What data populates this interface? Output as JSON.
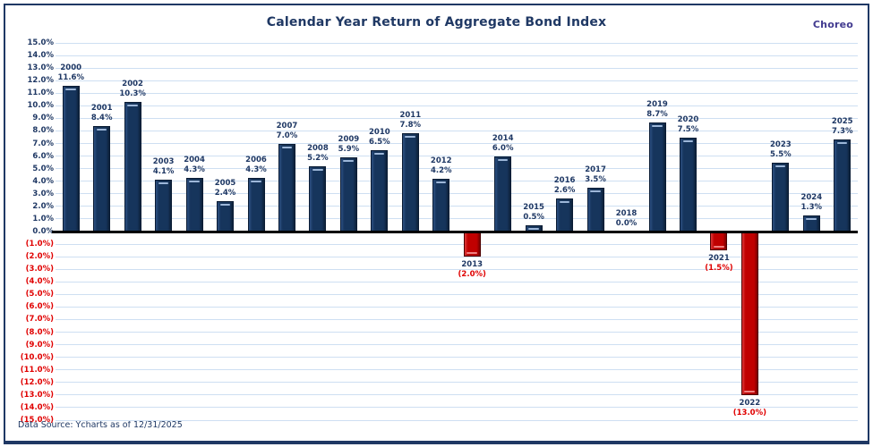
{
  "header": {
    "title": "Calendar Year Return of Aggregate Bond Index",
    "logo_text": "Choreo"
  },
  "footer": {
    "data_source": "Data Source: Ycharts as of 12/31/2025"
  },
  "colors": {
    "navy_text": "#1F3864",
    "red_text": "#E00000",
    "bar_positive": "#16355C",
    "bar_negative": "#C00000",
    "gridline": "#CEDFF2",
    "zero_axis": "#000000",
    "frame_border": "#1F3864",
    "logo": "#413A8F"
  },
  "chart_data": {
    "type": "bar",
    "title": "Calendar Year Return of Aggregate Bond Index",
    "xlabel": "",
    "ylabel": "",
    "categories": [
      "2000",
      "2001",
      "2002",
      "2003",
      "2004",
      "2005",
      "2006",
      "2007",
      "2008",
      "2009",
      "2010",
      "2011",
      "2012",
      "2013",
      "2014",
      "2015",
      "2016",
      "2017",
      "2018",
      "2019",
      "2020",
      "2021",
      "2022",
      "2023",
      "2024",
      "2025"
    ],
    "values": [
      11.6,
      8.4,
      10.3,
      4.1,
      4.3,
      2.4,
      4.3,
      7.0,
      5.2,
      5.9,
      6.5,
      7.8,
      4.2,
      -2.0,
      6.0,
      0.5,
      2.6,
      3.5,
      0.0,
      8.7,
      7.5,
      -1.5,
      -13.0,
      5.5,
      1.3,
      7.3
    ],
    "value_labels": [
      "11.6%",
      "8.4%",
      "10.3%",
      "4.1%",
      "4.3%",
      "2.4%",
      "4.3%",
      "7.0%",
      "5.2%",
      "5.9%",
      "6.5%",
      "7.8%",
      "4.2%",
      "(2.0%)",
      "6.0%",
      "0.5%",
      "2.6%",
      "3.5%",
      "0.0%",
      "8.7%",
      "7.5%",
      "(1.5%)",
      "(13.0%)",
      "5.5%",
      "1.3%",
      "7.3%"
    ],
    "ylim": [
      -15,
      15
    ],
    "ytick_step": 1,
    "ytick_label_positive_example": "15.0%",
    "ytick_label_negative_example": "(15.0%)",
    "grid": true,
    "legend_position": "none"
  }
}
